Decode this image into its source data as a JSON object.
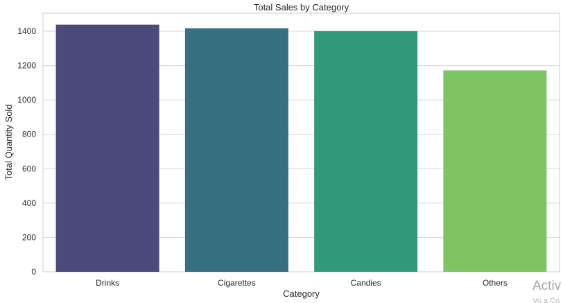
{
  "chart_data": {
    "type": "bar",
    "title": "Total Sales by Category",
    "xlabel": "Category",
    "ylabel": "Total Quantity Sold",
    "categories": [
      "Drinks",
      "Cigarettes",
      "Candies",
      "Others"
    ],
    "values": [
      1438,
      1417,
      1401,
      1172
    ],
    "ylim": [
      0,
      1505
    ],
    "yticks": [
      0,
      200,
      400,
      600,
      800,
      1000,
      1200,
      1400
    ],
    "grid": "horizontal",
    "colors": [
      "#4a4a7d",
      "#366f80",
      "#33997b",
      "#7fc462"
    ]
  },
  "watermark": {
    "line1": "Activ",
    "line2": "Vo a Co"
  }
}
